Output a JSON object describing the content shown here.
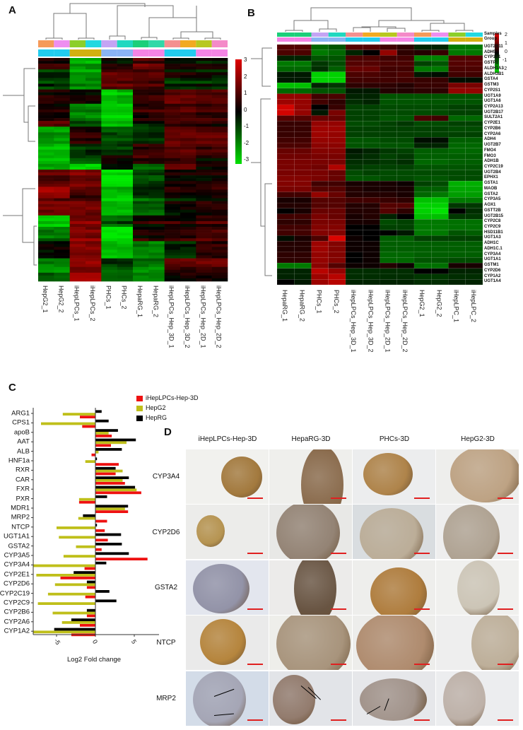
{
  "panels": {
    "a": "A",
    "b": "B",
    "c": "C",
    "d": "D"
  },
  "chart_data": [
    {
      "type": "heatmap",
      "panel": "A",
      "columns": [
        "HepG2_1",
        "HepG2_2",
        "iHepLPCs_1",
        "iHepLPCs_2",
        "PHCs_1",
        "PHCs_2",
        "HepaRG_1",
        "HepaRG_2",
        "iHepLPCs_Hep_3D_1",
        "iHepLPCs_Hep_3D_2",
        "iHepLPCs_Hep_2D_1",
        "iHepLPCs_Hep_2D_2"
      ],
      "colorbar": {
        "range": [
          -3,
          3
        ],
        "ticks": [
          "3",
          "2",
          "1",
          "0",
          "-1",
          "-2",
          "-3"
        ],
        "low": "#00e000",
        "mid": "#000000",
        "high": "#e00000"
      },
      "sample_colors": [
        "#f59a5a",
        "#ee8ef0",
        "#8ccf2a",
        "#22d8e0",
        "#c4a4f4",
        "#20d8c0",
        "#1ccf7a",
        "#30d8a8",
        "#f49090",
        "#f2aa22",
        "#b8c820",
        "#f48ac8"
      ],
      "group_colors": [
        "#22ccee",
        "#22ccee",
        "#d4b010",
        "#d4b010",
        "#8ab4f4",
        "#8ab4f4",
        "#f484e4",
        "#f484e4",
        "#22ccee",
        "#22ccee",
        "#f484e4",
        "#f484e4"
      ],
      "row_blocks": [
        {
          "rows": 4,
          "means": [
            0.5,
            0.5,
            -2,
            -2,
            0.2,
            0,
            1,
            1,
            0,
            0,
            0,
            0
          ]
        },
        {
          "rows": 3,
          "means": [
            -0.5,
            -0.5,
            -1.8,
            -1.8,
            1,
            1,
            0.8,
            0.8,
            0,
            0,
            -0.3,
            -0.3
          ]
        },
        {
          "rows": 4,
          "means": [
            -0.5,
            -0.5,
            -1.5,
            -1.5,
            1.2,
            1.2,
            1,
            1,
            -0.3,
            -0.3,
            -0.3,
            -0.3
          ]
        },
        {
          "rows": 5,
          "means": [
            0,
            0,
            -0.2,
            -0.2,
            -2.8,
            -2.5,
            0.2,
            0.2,
            0.8,
            0.8,
            0.7,
            0.7
          ]
        },
        {
          "rows": 6,
          "means": [
            0.3,
            0.3,
            -1.5,
            -1.5,
            -2.5,
            -2.5,
            0.5,
            0.5,
            0.9,
            0.9,
            0.7,
            0.7
          ]
        },
        {
          "rows": 2,
          "means": [
            1.2,
            1.2,
            -0.5,
            -0.5,
            -2,
            -2,
            -0.2,
            -0.2,
            0.6,
            0.6,
            0.5,
            0.5
          ]
        },
        {
          "rows": 6,
          "means": [
            -2,
            -2,
            0.3,
            0.3,
            -1,
            -1,
            -0.6,
            -0.6,
            1,
            1,
            1,
            1
          ]
        },
        {
          "rows": 4,
          "means": [
            -2.2,
            -2.2,
            -0.3,
            -0.3,
            -0.5,
            -0.5,
            0.8,
            0.8,
            1.2,
            1.2,
            0.9,
            0.9
          ]
        },
        {
          "rows": 3,
          "means": [
            -2,
            -2,
            -0.8,
            -0.8,
            0.5,
            0.5,
            0.8,
            0.8,
            0.8,
            0.8,
            0.3,
            0.3
          ]
        },
        {
          "rows": 2,
          "means": [
            -1.8,
            -1.8,
            -2.5,
            -2.5,
            0.2,
            0.2,
            -1,
            -1,
            1.3,
            1.3,
            0.3,
            0.3
          ]
        },
        {
          "rows": 6,
          "means": [
            1,
            1,
            1.5,
            1.5,
            -3,
            -3,
            -0.7,
            -0.7,
            0.2,
            0.2,
            0.3,
            0.3
          ]
        },
        {
          "rows": 4,
          "means": [
            1.8,
            1.8,
            0.6,
            0.6,
            -2.5,
            -2.5,
            -0.5,
            -0.5,
            0.1,
            0.1,
            0.2,
            0.2
          ]
        },
        {
          "rows": 6,
          "means": [
            1.2,
            1.2,
            1.2,
            1.2,
            -2.5,
            -2.5,
            -1.2,
            -1.2,
            -0.1,
            -0.1,
            0.2,
            0.2
          ]
        },
        {
          "rows": 4,
          "means": [
            -2.5,
            -2.5,
            1.5,
            1.5,
            -1,
            -1,
            0.3,
            0.3,
            0.4,
            0.4,
            0.7,
            0.7
          ]
        },
        {
          "rows": 5,
          "means": [
            -1.5,
            -1.5,
            1.5,
            1.5,
            -3,
            -3,
            0.3,
            0.3,
            0.4,
            0.4,
            0.8,
            0.8
          ]
        },
        {
          "rows": 6,
          "means": [
            0.3,
            0.3,
            1.8,
            1.8,
            -2,
            -2,
            -1.2,
            -1.2,
            -0.1,
            -0.1,
            0.8,
            0.8
          ]
        },
        {
          "rows": 5,
          "means": [
            -1.8,
            -1.8,
            1.5,
            1.5,
            -0.8,
            -0.8,
            -1.5,
            -1.5,
            0.8,
            0.8,
            1,
            1
          ]
        },
        {
          "rows": 3,
          "means": [
            -1,
            -1,
            2.2,
            2.2,
            -1,
            -1,
            -1.3,
            -1.3,
            0.3,
            0.3,
            0.3,
            0.3
          ]
        }
      ]
    },
    {
      "type": "heatmap",
      "panel": "B",
      "columns": [
        "HepaRG_1",
        "HepaRG_2",
        "PHCs_1",
        "PHCs_2",
        "iHepLPCs_Hep_3D_1",
        "iHepLPCs_Hep_3D_2",
        "iHepLPCs_Hep_2D_1",
        "iHepLPCs_Hep_2D_2",
        "HepG2_1",
        "HepG2_2",
        "iHepLPC_1",
        "iHepLPC_2"
      ],
      "annotation_labels": [
        "Samples",
        "Group"
      ],
      "colorbar": {
        "range": [
          -2.5,
          2.5
        ],
        "ticks": [
          "2",
          "1",
          "0",
          "-1",
          "-2"
        ]
      },
      "sample_colors": [
        "#1ccf7a",
        "#1ccf7a",
        "#c4a4f4",
        "#20d8c0",
        "#f49090",
        "#f2aa22",
        "#b8c820",
        "#f48ac8",
        "#f59a5a",
        "#ee8ef0",
        "#8ccf2a",
        "#22d8e0"
      ],
      "group_colors": [
        "#f484e4",
        "#f484e4",
        "#8ab4f4",
        "#8ab4f4",
        "#22ccee",
        "#22ccee",
        "#f484e4",
        "#f484e4",
        "#22ccee",
        "#22ccee",
        "#d4b010",
        "#d4b010"
      ],
      "genes": [
        "UGT2B11",
        "ADH5",
        "CYP1B1",
        "GSTP1",
        "ALDH1A3",
        "ALDH3B1",
        "GSTA4",
        "GSTM3",
        "CYP2S1",
        "UGT1A9",
        "UGT1A6",
        "CYP2A13",
        "UGT2B17",
        "SULT2A1",
        "CYP2E1",
        "CYP2B6",
        "CYP2A6",
        "ADH4",
        "UGT2B7",
        "FMO4",
        "FMO3",
        "ADH1B",
        "CYP2C19",
        "UGT2B4",
        "EPHX1",
        "GSTA1",
        "MAOB",
        "GSTA2",
        "CYP3A5",
        "AOX1",
        "GSTT2B",
        "UGT2B15",
        "CYP2C8",
        "CYP2C9",
        "HSD11B1",
        "UGT1A3",
        "ADH1C",
        "ADH1C.1",
        "CYP3A4",
        "UGT1A1",
        "GSTM1",
        "CYP2D6",
        "CYP1A2",
        "UGT1A4"
      ],
      "values": [
        [
          0.8,
          0.8,
          -1,
          -0.8,
          0.8,
          0.8,
          0.6,
          0.4,
          -0.3,
          -0.3,
          -1.2,
          -1.2
        ],
        [
          0.7,
          0.7,
          -1.2,
          -1,
          -0.3,
          0,
          1.5,
          0.4,
          0.3,
          0.5,
          -1.2,
          -1.2
        ],
        [
          -0.3,
          -0.3,
          -0.8,
          -0.8,
          0.7,
          0.7,
          0.6,
          0.6,
          -1.3,
          -1.3,
          0.8,
          0.8
        ],
        [
          -1.2,
          -1.2,
          -0.5,
          -0.7,
          0.8,
          0.8,
          0.7,
          0.7,
          -0.6,
          -0.8,
          0.8,
          0.8
        ],
        [
          -1,
          -1,
          -0.4,
          -0.9,
          1,
          1,
          0.6,
          0.6,
          -1.2,
          -1.2,
          0.7,
          0.7
        ],
        [
          -0.2,
          -0.2,
          -2.2,
          -2.2,
          0.7,
          0.7,
          0.6,
          0.7,
          -0.2,
          -0.1,
          0.6,
          0.6
        ],
        [
          -0.2,
          -0.2,
          -2.2,
          -2.2,
          0.6,
          0.6,
          0.6,
          0.6,
          0.5,
          0.5,
          -0.1,
          -0.1
        ],
        [
          -2,
          -2,
          -0.3,
          -0.5,
          0.4,
          0.4,
          0.4,
          0.3,
          0.5,
          0.5,
          1.2,
          1.2
        ],
        [
          -1,
          -1,
          -0.8,
          -0.8,
          -0.2,
          -0.2,
          0.3,
          0.3,
          0.4,
          0.4,
          1.5,
          1.5
        ],
        [
          1.5,
          1.5,
          0.6,
          0.7,
          -0.3,
          -0.3,
          -0.8,
          -0.8,
          -0.8,
          -0.8,
          -0.8,
          -0.8
        ],
        [
          1.6,
          1.5,
          0.6,
          0.4,
          -0.4,
          -0.3,
          -0.8,
          -0.8,
          -0.8,
          -0.8,
          -0.8,
          -0.8
        ],
        [
          2.2,
          1.5,
          0,
          0.5,
          -0.6,
          -0.6,
          -0.7,
          -0.7,
          -0.7,
          -0.7,
          -0.6,
          -0.6
        ],
        [
          2.2,
          1.5,
          -0.2,
          1.2,
          -0.6,
          -0.6,
          -0.7,
          -0.7,
          -0.7,
          -0.7,
          -0.6,
          -0.6
        ],
        [
          0.8,
          0.8,
          1,
          1,
          -0.6,
          -0.6,
          -0.8,
          -0.8,
          0.7,
          0.6,
          -1,
          -1
        ],
        [
          0.5,
          0.5,
          1.5,
          1.5,
          -0.7,
          -0.7,
          -0.6,
          -0.5,
          -0.7,
          -0.7,
          -0.6,
          -0.6
        ],
        [
          0.5,
          0.5,
          1.6,
          1.6,
          -0.6,
          -0.6,
          -0.6,
          -0.6,
          -0.6,
          -0.6,
          -0.7,
          -0.7
        ],
        [
          0.5,
          0.5,
          1.6,
          1.5,
          -0.6,
          -0.6,
          -0.6,
          -0.6,
          -0.6,
          -0.6,
          -0.6,
          -0.6
        ],
        [
          0.6,
          0.6,
          1.5,
          1.5,
          -0.8,
          -0.8,
          -0.7,
          -0.7,
          -0.1,
          -0.1,
          -0.9,
          -0.9
        ],
        [
          0.7,
          0.7,
          1.4,
          1.4,
          -0.8,
          -0.8,
          -0.8,
          -0.8,
          -0.3,
          -0.3,
          -1,
          -1
        ],
        [
          1,
          1,
          1.3,
          1.3,
          -0.2,
          -0.3,
          -0.5,
          -0.6,
          -0.9,
          -0.9,
          -1,
          -1
        ],
        [
          1.1,
          1.1,
          1.2,
          1.2,
          -0.3,
          -0.4,
          -0.6,
          -0.5,
          -0.9,
          -0.9,
          -0.9,
          -0.9
        ],
        [
          1.2,
          1.2,
          1.2,
          1.2,
          -0.4,
          -0.4,
          -0.5,
          -0.4,
          -1,
          -1,
          -0.9,
          -0.9
        ],
        [
          1.2,
          1.2,
          1.1,
          1.8,
          -0.5,
          -0.6,
          -0.6,
          -0.6,
          -0.8,
          -0.8,
          -0.8,
          -0.8
        ],
        [
          1.2,
          1.2,
          1.2,
          1,
          -0.7,
          -0.6,
          -0.7,
          -0.7,
          -0.7,
          -0.7,
          -0.7,
          -0.7
        ],
        [
          1.3,
          1.3,
          1.2,
          1,
          -0.8,
          -0.8,
          -0.7,
          -0.7,
          -0.8,
          -0.8,
          -0.7,
          -0.7
        ],
        [
          1.3,
          1.3,
          0.6,
          0.6,
          0.2,
          0.2,
          0.2,
          0.1,
          -0.6,
          -0.7,
          -1.8,
          -1.8
        ],
        [
          1.2,
          1.2,
          0.8,
          0.8,
          0.3,
          0.2,
          0.2,
          0.2,
          -0.9,
          -0.9,
          -1.7,
          -1.7
        ],
        [
          0.6,
          0.6,
          1.5,
          1,
          0.3,
          0.3,
          0.3,
          0.2,
          -1,
          -1.2,
          -1.6,
          -1.6
        ],
        [
          0.2,
          0.2,
          0.8,
          0.8,
          0.6,
          0.6,
          0.5,
          0.4,
          -2,
          -2,
          -1.2,
          -1.2
        ],
        [
          0.3,
          0.3,
          0.8,
          0.8,
          0.3,
          0.3,
          0.8,
          0.8,
          -2.2,
          -2.2,
          -0.5,
          -0.5
        ],
        [
          0,
          0.2,
          1,
          1,
          0.3,
          0.3,
          0.8,
          0.4,
          -2.2,
          -2.4,
          0,
          -0.4
        ],
        [
          0.6,
          0.6,
          1.2,
          1,
          0.2,
          0.3,
          -0.3,
          0,
          -2,
          -2,
          -0.5,
          -0.5
        ],
        [
          0.4,
          0.4,
          1.2,
          1.2,
          0.2,
          0.2,
          -0.7,
          -0.6,
          -1.2,
          -1.2,
          -1.1,
          -1.1
        ],
        [
          0.6,
          0.6,
          1.3,
          1.3,
          0,
          0,
          -0.6,
          -0.6,
          -1.2,
          -1.2,
          -1.1,
          -1.1
        ],
        [
          0.6,
          0.6,
          1.3,
          1.3,
          0,
          0,
          0,
          -0.2,
          -1.2,
          -1.2,
          -0.8,
          -0.9
        ],
        [
          -0.1,
          0.2,
          0.7,
          2.3,
          0.1,
          0,
          -0.9,
          -0.9,
          -0.6,
          -0.6,
          -0.6,
          -0.6
        ],
        [
          0.3,
          0.3,
          1.6,
          1.3,
          0.1,
          0.1,
          -0.9,
          -0.9,
          -0.9,
          -0.9,
          -0.9,
          -0.9
        ],
        [
          0.3,
          0.3,
          1.6,
          1.3,
          0.1,
          0.1,
          -0.9,
          -0.9,
          -0.9,
          -0.9,
          -0.9,
          -0.9
        ],
        [
          0.4,
          0.4,
          1.5,
          1.3,
          0,
          0.1,
          -1,
          -1,
          -0.9,
          -0.9,
          -0.9,
          -0.9
        ],
        [
          0.4,
          0.4,
          1.5,
          1.3,
          0,
          0.1,
          -1,
          -1,
          -0.8,
          -0.8,
          -0.7,
          -0.7
        ],
        [
          -1.2,
          -1.2,
          1.4,
          0.8,
          0.1,
          0.1,
          0.3,
          0.1,
          -1.1,
          -1.1,
          0.2,
          0.2
        ],
        [
          -0.3,
          -0.3,
          1.9,
          1.5,
          -0.4,
          -0.4,
          -0.4,
          -0.4,
          0,
          0,
          -0.3,
          -0.3
        ],
        [
          -0.3,
          -0.3,
          1.6,
          1.9,
          -0.4,
          -0.4,
          -0.4,
          -0.4,
          -0.5,
          -0.5,
          -0.4,
          -0.4
        ],
        [
          0,
          -0.2,
          1.6,
          1.9,
          -0.3,
          -0.3,
          -0.3,
          -0.3,
          -0.4,
          -0.4,
          -0.3,
          -0.3
        ]
      ]
    },
    {
      "type": "bar",
      "orientation": "horizontal",
      "panel": "C",
      "xlabel": "Log2 Fold change",
      "xlim": [
        -8,
        8
      ],
      "xticks": [
        "-5",
        "0",
        "5"
      ],
      "xtick_values": [
        -5,
        0,
        5
      ],
      "legend_position": "top-right",
      "categories": [
        "ARG1",
        "CPS1",
        "apoB",
        "AAT",
        "ALB",
        "HNF1a",
        "RXR",
        "CAR",
        "FXR",
        "PXR",
        "MDR1",
        "MRP2",
        "NTCP",
        "UGT1A1",
        "GSTA2",
        "CYP3A5",
        "CYP3A4",
        "CYP2E1",
        "CYP2D6",
        "CYP2C19",
        "CYP2C9",
        "CYP2B6",
        "CYP2A6",
        "CYP1A2"
      ],
      "series": [
        {
          "name": "iHepLPCs-Hep-3D",
          "color": "#ee1111",
          "values": [
            -2.0,
            -1.7,
            2.1,
            2.0,
            -0.5,
            3.0,
            2.6,
            3.8,
            5.9,
            -2.1,
            4.2,
            1.5,
            1.2,
            1.6,
            0.8,
            6.7,
            -1.4,
            -4.5,
            -1.1,
            -1.3,
            0.05,
            -1.1,
            -2.0,
            -3.1
          ]
        },
        {
          "name": "HepG2",
          "color": "#bfbf1a",
          "values": [
            -4.2,
            -7.0,
            1.7,
            4.0,
            0.4,
            -1.3,
            3.5,
            3.5,
            5.3,
            -2.1,
            3.8,
            -2.2,
            -5.0,
            -4.7,
            -2.5,
            -4.1,
            -8.0,
            -7.6,
            -5.2,
            -6.1,
            -7.4,
            -5.5,
            -4.3,
            -8.0
          ]
        },
        {
          "name": "HepRG",
          "color": "#000000",
          "values": [
            0.8,
            1.7,
            2.9,
            5.2,
            3.4,
            0.2,
            2.6,
            4.3,
            5.1,
            1.5,
            4.2,
            -1.6,
            0.2,
            3.3,
            3.4,
            4.3,
            1.4,
            -2.8,
            -1.1,
            1.8,
            2.7,
            -1.1,
            -3.1,
            -5.3
          ]
        }
      ]
    }
  ],
  "panel_d": {
    "columns": [
      "iHepLPCs-Hep-3D",
      "HepaRG-3D",
      "PHCs-3D",
      "HepG2-3D"
    ],
    "rows": [
      "CYP3A4",
      "CYP2D6",
      "GSTA2",
      "NTCP",
      "MRP2"
    ]
  }
}
